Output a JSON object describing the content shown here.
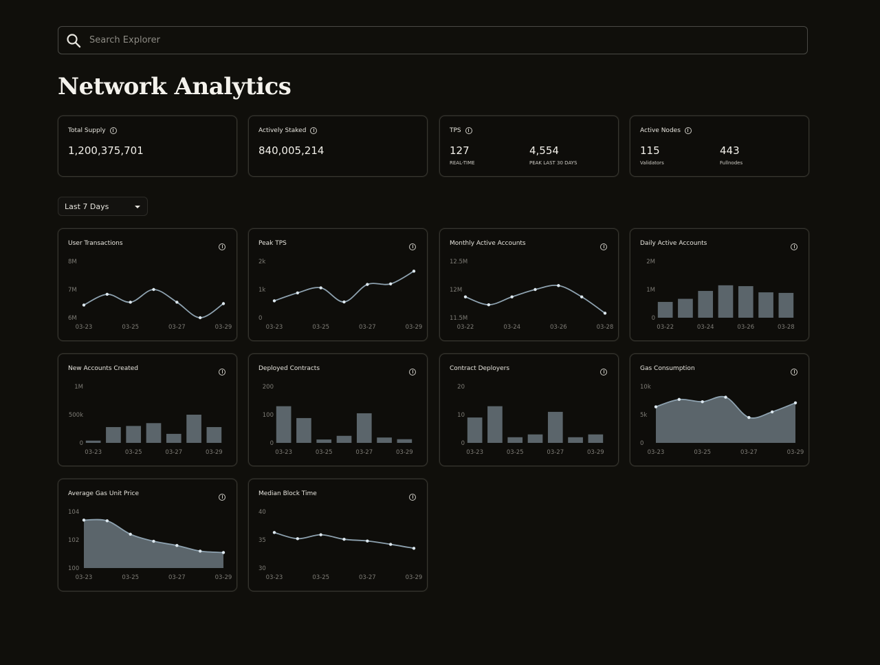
{
  "search": {
    "placeholder": "Search Explorer",
    "value": ""
  },
  "page_title": "Network Analytics",
  "stats": [
    {
      "label": "Total Supply",
      "value": "1,200,375,701"
    },
    {
      "label": "Actively Staked",
      "value": "840,005,214"
    },
    {
      "label": "TPS",
      "value": "127",
      "sub": "REAL-TIME",
      "value2": "4,554",
      "sub2": "PEAK LAST 30 DAYS"
    },
    {
      "label": "Active Nodes",
      "value": "115",
      "sub": "Validators",
      "value2": "443",
      "sub2": "Fullnodes"
    }
  ],
  "range_select": {
    "selected": "Last 7 Days"
  },
  "colors": {
    "line": "#8ea2b0",
    "point": "#dde8ef",
    "bar": "#5b656b",
    "area": "#5b656b"
  },
  "chart_data": [
    {
      "title": "User Transactions",
      "type": "line",
      "x": [
        "03-23",
        "03-24",
        "03-25",
        "03-26",
        "03-27",
        "03-28",
        "03-29"
      ],
      "x_ticks": [
        "03-23",
        "03-25",
        "03-27",
        "03-29"
      ],
      "values": [
        6.45,
        6.83,
        6.55,
        7.0,
        6.55,
        6.0,
        6.5
      ],
      "ylim": [
        6,
        8
      ],
      "y_ticks": [
        6,
        7,
        8
      ],
      "y_tick_labels": [
        "6M",
        "7M",
        "8M"
      ]
    },
    {
      "title": "Peak TPS",
      "type": "line",
      "x": [
        "03-23",
        "03-24",
        "03-25",
        "03-26",
        "03-27",
        "03-28",
        "03-29"
      ],
      "x_ticks": [
        "03-23",
        "03-25",
        "03-27",
        "03-29"
      ],
      "values": [
        600,
        880,
        1060,
        560,
        1180,
        1200,
        1650
      ],
      "ylim": [
        0,
        2000
      ],
      "y_ticks": [
        0,
        1000,
        2000
      ],
      "y_tick_labels": [
        "0",
        "1k",
        "2k"
      ]
    },
    {
      "title": "Monthly Active Accounts",
      "type": "line",
      "x": [
        "03-22",
        "03-23",
        "03-24",
        "03-25",
        "03-26",
        "03-27",
        "03-28"
      ],
      "x_ticks": [
        "03-22",
        "03-24",
        "03-26",
        "03-28"
      ],
      "values": [
        11.87,
        11.73,
        11.87,
        12.0,
        12.07,
        11.87,
        11.58
      ],
      "ylim": [
        11.5,
        12.5
      ],
      "y_ticks": [
        11.5,
        12,
        12.5
      ],
      "y_tick_labels": [
        "11.5M",
        "12M",
        "12.5M"
      ]
    },
    {
      "title": "Daily Active Accounts",
      "type": "bar",
      "x": [
        "03-22",
        "03-23",
        "03-24",
        "03-25",
        "03-26",
        "03-27",
        "03-28"
      ],
      "x_ticks": [
        "03-22",
        "03-24",
        "03-26",
        "03-28"
      ],
      "values": [
        0.56,
        0.67,
        0.95,
        1.15,
        1.12,
        0.9,
        0.88
      ],
      "ylim": [
        0,
        2
      ],
      "y_ticks": [
        0,
        1,
        2
      ],
      "y_tick_labels": [
        "0",
        "1M",
        "2M"
      ]
    },
    {
      "title": "New Accounts Created",
      "type": "bar",
      "x": [
        "03-23",
        "03-24",
        "03-25",
        "03-26",
        "03-27",
        "03-28",
        "03-29"
      ],
      "x_ticks": [
        "03-23",
        "03-25",
        "03-27",
        "03-29"
      ],
      "values": [
        40,
        280,
        300,
        350,
        160,
        500,
        280
      ],
      "ylim": [
        0,
        1000
      ],
      "y_ticks": [
        0,
        500,
        1000
      ],
      "y_tick_labels": [
        "0",
        "500k",
        "1M"
      ]
    },
    {
      "title": "Deployed Contracts",
      "type": "bar",
      "x": [
        "03-23",
        "03-24",
        "03-25",
        "03-26",
        "03-27",
        "03-28",
        "03-29"
      ],
      "x_ticks": [
        "03-23",
        "03-25",
        "03-27",
        "03-29"
      ],
      "values": [
        130,
        88,
        12,
        25,
        105,
        19,
        13
      ],
      "ylim": [
        0,
        200
      ],
      "y_ticks": [
        0,
        100,
        200
      ],
      "y_tick_labels": [
        "0",
        "100",
        "200"
      ]
    },
    {
      "title": "Contract Deployers",
      "type": "bar",
      "x": [
        "03-23",
        "03-24",
        "03-25",
        "03-26",
        "03-27",
        "03-28",
        "03-29"
      ],
      "x_ticks": [
        "03-23",
        "03-25",
        "03-27",
        "03-29"
      ],
      "values": [
        9,
        13,
        2,
        3,
        11,
        2,
        3
      ],
      "ylim": [
        0,
        20
      ],
      "y_ticks": [
        0,
        10,
        20
      ],
      "y_tick_labels": [
        "0",
        "10",
        "20"
      ]
    },
    {
      "title": "Gas Consumption",
      "type": "area",
      "x": [
        "03-23",
        "03-24",
        "03-25",
        "03-26",
        "03-27",
        "03-28",
        "03-29"
      ],
      "x_ticks": [
        "03-23",
        "03-25",
        "03-27",
        "03-29"
      ],
      "values": [
        6400,
        7700,
        7300,
        8100,
        4500,
        5500,
        7100
      ],
      "ylim": [
        0,
        10000
      ],
      "y_ticks": [
        0,
        5000,
        10000
      ],
      "y_tick_labels": [
        "0",
        "5k",
        "10k"
      ]
    },
    {
      "title": "Average Gas Unit Price",
      "type": "area",
      "x": [
        "03-23",
        "03-24",
        "03-25",
        "03-26",
        "03-27",
        "03-28",
        "03-29"
      ],
      "x_ticks": [
        "03-23",
        "03-25",
        "03-27",
        "03-29"
      ],
      "values": [
        103.4,
        103.35,
        102.4,
        101.9,
        101.6,
        101.2,
        101.1
      ],
      "ylim": [
        100,
        104
      ],
      "y_ticks": [
        100,
        102,
        104
      ],
      "y_tick_labels": [
        "100",
        "102",
        "104"
      ]
    },
    {
      "title": "Median Block Time",
      "type": "line",
      "x": [
        "03-23",
        "03-24",
        "03-25",
        "03-26",
        "03-27",
        "03-28",
        "03-29"
      ],
      "x_ticks": [
        "03-23",
        "03-25",
        "03-27",
        "03-29"
      ],
      "values": [
        36.3,
        35.2,
        35.9,
        35.1,
        34.8,
        34.2,
        33.5
      ],
      "ylim": [
        30,
        40
      ],
      "y_ticks": [
        30,
        35,
        40
      ],
      "y_tick_labels": [
        "30",
        "35",
        "40"
      ]
    }
  ]
}
